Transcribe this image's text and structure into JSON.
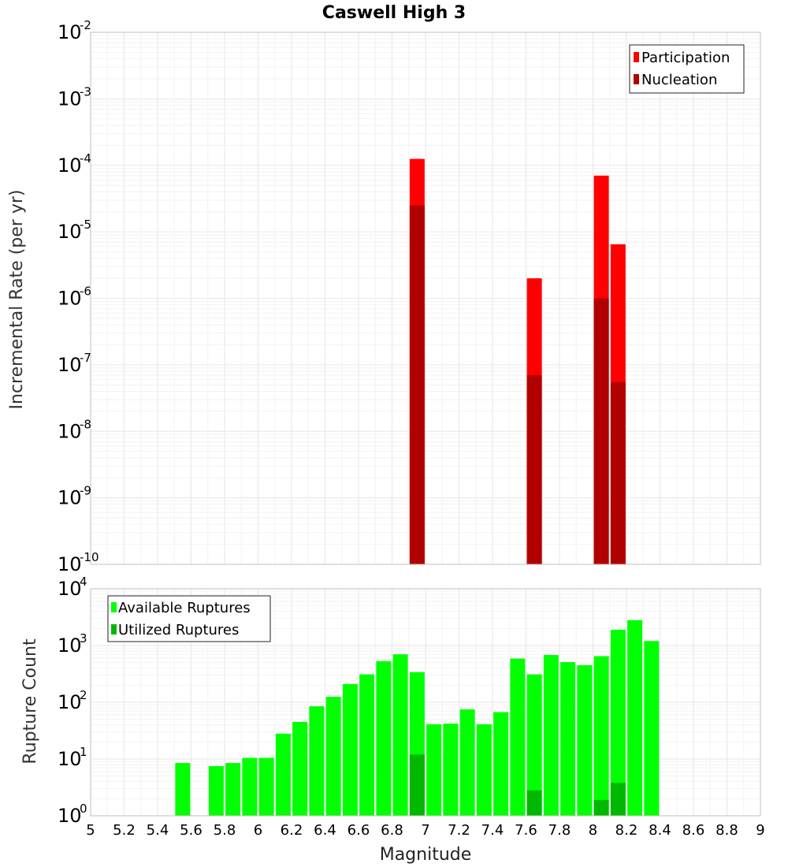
{
  "colors": {
    "participation": "#ff0000",
    "nucleation": "#b00000",
    "available": "#00ff00",
    "utilized": "#00b800",
    "grid_major": "#e6e6e6",
    "grid_minor": "#f2f2f2",
    "axis": "#bfbfbf"
  },
  "chart_data": [
    {
      "type": "bar",
      "title": "Caswell High 3",
      "xlabel": "",
      "ylabel": "Incremental Rate (per yr)",
      "yscale": "log",
      "xlim": [
        5,
        9
      ],
      "ylim_exp": [
        -10,
        -2
      ],
      "legend": {
        "placement": "top-right",
        "entries": [
          {
            "label": "Participation",
            "color_key": "participation"
          },
          {
            "label": "Nucleation",
            "color_key": "nucleation"
          }
        ]
      },
      "series": [
        {
          "name": "Participation",
          "color_key": "participation",
          "x": [
            6.95,
            7.65,
            8.05,
            8.15
          ],
          "values": [
            0.000125,
            2e-06,
            7e-05,
            6.5e-06
          ]
        },
        {
          "name": "Nucleation",
          "color_key": "nucleation",
          "x": [
            6.95,
            7.65,
            8.05,
            8.15
          ],
          "values": [
            2.5e-05,
            7e-08,
            1e-06,
            5.5e-08
          ]
        }
      ]
    },
    {
      "type": "bar",
      "title": "",
      "xlabel": "Magnitude",
      "ylabel": "Rupture Count",
      "yscale": "log",
      "xlim": [
        5,
        9
      ],
      "ylim_exp": [
        0,
        4
      ],
      "xticks": [
        "5",
        "5.2",
        "5.4",
        "5.6",
        "5.8",
        "6",
        "6.2",
        "6.4",
        "6.6",
        "6.8",
        "7",
        "7.2",
        "7.4",
        "7.6",
        "7.8",
        "8",
        "8.2",
        "8.4",
        "8.6",
        "8.8",
        "9"
      ],
      "legend": {
        "placement": "top-left",
        "entries": [
          {
            "label": "Available Ruptures",
            "color_key": "available"
          },
          {
            "label": "Utilized Ruptures",
            "color_key": "utilized"
          }
        ]
      },
      "series": [
        {
          "name": "Available Ruptures",
          "color_key": "available",
          "x": [
            5.55,
            5.75,
            5.85,
            5.95,
            6.05,
            6.15,
            6.25,
            6.35,
            6.45,
            6.55,
            6.65,
            6.75,
            6.85,
            6.95,
            7.05,
            7.15,
            7.25,
            7.35,
            7.45,
            7.55,
            7.65,
            7.75,
            7.85,
            7.95,
            8.05,
            8.15,
            8.25,
            8.35
          ],
          "values": [
            8.5,
            7.5,
            8.5,
            10.5,
            10.5,
            28,
            45,
            85,
            125,
            210,
            310,
            530,
            700,
            340,
            41,
            42,
            75,
            41,
            67,
            590,
            310,
            680,
            510,
            450,
            650,
            1900,
            2800,
            1200
          ]
        },
        {
          "name": "Utilized Ruptures",
          "color_key": "utilized",
          "x": [
            6.95,
            7.65,
            8.05,
            8.15
          ],
          "values": [
            12,
            2.8,
            1.9,
            3.8
          ]
        }
      ]
    }
  ]
}
